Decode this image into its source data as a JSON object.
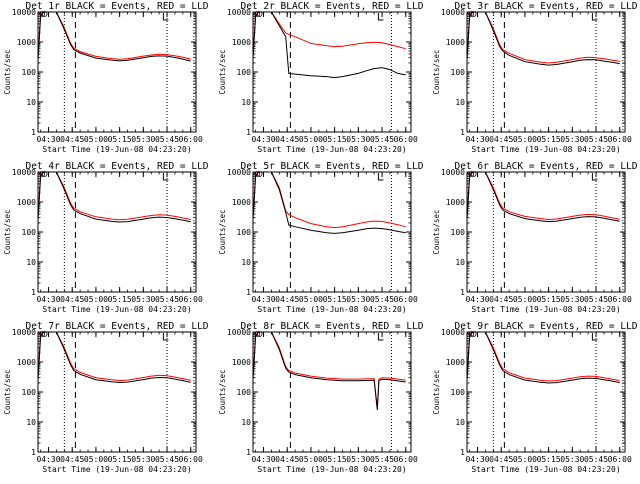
{
  "figure": {
    "xlabel": "Start Time (19-Jun-08 04:23:20)",
    "ylabel": "Counts/sec",
    "x_ticks": [
      "04:30",
      "04:45",
      "05:00",
      "05:15",
      "05:30",
      "05:45",
      "06:00"
    ],
    "y_ticks": [
      "1",
      "10",
      "100",
      "1000",
      "10000"
    ],
    "colors": {
      "events": "#000000",
      "lld": "#ff0000",
      "axes": "#000000",
      "background": "#ffffff"
    }
  },
  "chart_data": [
    {
      "type": "line",
      "title": "Det 1r BLACK = Events, RED = LLD",
      "xlim": [
        "04:23:20",
        "06:03:20"
      ],
      "ylim": [
        1,
        10000
      ],
      "yscale": "log",
      "x": [
        "04:23:20",
        "04:25",
        "04:27",
        "04:30",
        "04:35",
        "04:40",
        "04:44",
        "04:46",
        "04:50",
        "05:00",
        "05:10",
        "05:15",
        "05:20",
        "05:30",
        "05:35",
        "05:40",
        "05:45",
        "05:50",
        "05:55",
        "06:00"
      ],
      "series": [
        {
          "name": "LLD",
          "values": [
            300,
            8000,
            10000,
            10000,
            10000,
            3000,
            900,
            620,
            480,
            330,
            280,
            265,
            275,
            340,
            370,
            390,
            380,
            350,
            310,
            270
          ]
        },
        {
          "name": "Events",
          "values": [
            250,
            7000,
            10000,
            10000,
            10000,
            2600,
            800,
            560,
            430,
            290,
            250,
            235,
            245,
            300,
            330,
            345,
            340,
            305,
            270,
            230
          ]
        }
      ],
      "markers": [
        {
          "x": "04:26",
          "y": 10000
        },
        {
          "x": "04:27:30",
          "y": 10000
        }
      ],
      "dotted_vlines": [
        "04:40",
        "05:45",
        "06:02"
      ],
      "dashed_vlines": [
        "04:47"
      ]
    },
    {
      "type": "line",
      "title": "Det 2r BLACK = Events, RED = LLD",
      "xlim": [
        "04:23:20",
        "06:03:20"
      ],
      "ylim": [
        1,
        10000
      ],
      "yscale": "log",
      "x": [
        "04:23:20",
        "04:25",
        "04:27",
        "04:30",
        "04:35",
        "04:40",
        "04:44",
        "04:46",
        "04:50",
        "05:00",
        "05:10",
        "05:15",
        "05:20",
        "05:30",
        "05:35",
        "05:40",
        "05:45",
        "05:50",
        "05:55",
        "06:00"
      ],
      "series": [
        {
          "name": "LLD",
          "values": [
            300,
            8000,
            10000,
            10000,
            10000,
            4000,
            2000,
            1800,
            1500,
            900,
            750,
            700,
            720,
            880,
            950,
            980,
            940,
            820,
            700,
            600
          ]
        },
        {
          "name": "Events",
          "values": [
            300,
            7000,
            10000,
            10000,
            10000,
            3500,
            1500,
            90,
            85,
            75,
            70,
            65,
            70,
            90,
            110,
            130,
            140,
            120,
            90,
            80
          ]
        }
      ],
      "markers": [
        {
          "x": "04:26",
          "y": 10000
        },
        {
          "x": "04:27:30",
          "y": 10000
        }
      ],
      "dotted_vlines": [
        "05:51"
      ],
      "dashed_vlines": [
        "04:47"
      ]
    },
    {
      "type": "line",
      "title": "Det 3r BLACK = Events, RED = LLD",
      "xlim": [
        "04:23:20",
        "06:03:20"
      ],
      "ylim": [
        1,
        10000
      ],
      "yscale": "log",
      "x": [
        "04:23:20",
        "04:25",
        "04:27",
        "04:30",
        "04:35",
        "04:40",
        "04:44",
        "04:46",
        "04:50",
        "05:00",
        "05:10",
        "05:15",
        "05:20",
        "05:30",
        "05:35",
        "05:40",
        "05:45",
        "05:50",
        "05:55",
        "06:00"
      ],
      "series": [
        {
          "name": "LLD",
          "values": [
            300,
            8000,
            10000,
            10000,
            10000,
            2800,
            800,
            560,
            420,
            260,
            210,
            200,
            210,
            260,
            290,
            310,
            300,
            275,
            250,
            225
          ]
        },
        {
          "name": "Events",
          "values": [
            250,
            7000,
            10000,
            10000,
            10000,
            2400,
            700,
            500,
            360,
            220,
            180,
            170,
            178,
            220,
            245,
            260,
            255,
            230,
            210,
            190
          ]
        }
      ],
      "markers": [
        {
          "x": "04:26",
          "y": 10000
        },
        {
          "x": "04:27:30",
          "y": 10000
        }
      ],
      "dotted_vlines": [
        "04:40",
        "05:45",
        "06:02"
      ],
      "dashed_vlines": [
        "04:47"
      ]
    },
    {
      "type": "line",
      "title": "Det 4r BLACK = Events, RED = LLD",
      "xlim": [
        "04:23:20",
        "06:03:20"
      ],
      "ylim": [
        1,
        10000
      ],
      "yscale": "log",
      "x": [
        "04:23:20",
        "04:25",
        "04:27",
        "04:30",
        "04:35",
        "04:40",
        "04:44",
        "04:46",
        "04:50",
        "05:00",
        "05:10",
        "05:15",
        "05:20",
        "05:30",
        "05:35",
        "05:40",
        "05:45",
        "05:50",
        "05:55",
        "06:00"
      ],
      "series": [
        {
          "name": "LLD",
          "values": [
            300,
            8000,
            10000,
            10000,
            10000,
            3000,
            900,
            620,
            470,
            320,
            270,
            255,
            265,
            320,
            355,
            375,
            365,
            330,
            295,
            260
          ]
        },
        {
          "name": "Events",
          "values": [
            250,
            7000,
            10000,
            10000,
            10000,
            2600,
            780,
            540,
            410,
            270,
            225,
            215,
            222,
            270,
            300,
            315,
            305,
            278,
            250,
            220
          ]
        }
      ],
      "markers": [
        {
          "x": "04:26",
          "y": 10000
        },
        {
          "x": "04:27:30",
          "y": 10000
        }
      ],
      "dotted_vlines": [
        "04:40",
        "05:45",
        "06:02"
      ],
      "dashed_vlines": [
        "04:47"
      ]
    },
    {
      "type": "line",
      "title": "Det 5r BLACK = Events, RED = LLD",
      "xlim": [
        "04:23:20",
        "06:03:20"
      ],
      "ylim": [
        1,
        10000
      ],
      "yscale": "log",
      "x": [
        "04:23:20",
        "04:25",
        "04:27",
        "04:30",
        "04:35",
        "04:40",
        "04:44",
        "04:46",
        "04:50",
        "05:00",
        "05:10",
        "05:15",
        "05:20",
        "05:30",
        "05:35",
        "05:40",
        "05:45",
        "05:50",
        "05:55",
        "06:00"
      ],
      "series": [
        {
          "name": "LLD",
          "values": [
            300,
            8000,
            10000,
            10000,
            10000,
            3000,
            500,
            380,
            300,
            190,
            150,
            140,
            148,
            190,
            215,
            230,
            225,
            200,
            175,
            150
          ]
        },
        {
          "name": "Events",
          "values": [
            250,
            7000,
            10000,
            10000,
            10000,
            2600,
            450,
            170,
            150,
            115,
            95,
            90,
            94,
            115,
            128,
            135,
            130,
            118,
            105,
            95
          ]
        }
      ],
      "markers": [
        {
          "x": "04:26",
          "y": 10000
        },
        {
          "x": "04:27:30",
          "y": 10000
        }
      ],
      "dotted_vlines": [
        "05:51"
      ],
      "dashed_vlines": [
        "04:47"
      ]
    },
    {
      "type": "line",
      "title": "Det 6r BLACK = Events, RED = LLD",
      "xlim": [
        "04:23:20",
        "06:03:20"
      ],
      "ylim": [
        1,
        10000
      ],
      "yscale": "log",
      "x": [
        "04:23:20",
        "04:25",
        "04:27",
        "04:30",
        "04:35",
        "04:40",
        "04:44",
        "04:46",
        "04:50",
        "05:00",
        "05:10",
        "05:15",
        "05:20",
        "05:30",
        "05:35",
        "05:40",
        "05:45",
        "05:50",
        "05:55",
        "06:00"
      ],
      "series": [
        {
          "name": "LLD",
          "values": [
            300,
            8000,
            10000,
            10000,
            10000,
            3000,
            900,
            620,
            470,
            330,
            280,
            262,
            272,
            330,
            365,
            385,
            375,
            340,
            300,
            265
          ]
        },
        {
          "name": "Events",
          "values": [
            250,
            7000,
            10000,
            10000,
            10000,
            2600,
            780,
            540,
            410,
            280,
            235,
            222,
            230,
            280,
            310,
            325,
            318,
            288,
            258,
            228
          ]
        }
      ],
      "markers": [
        {
          "x": "04:26",
          "y": 10000
        },
        {
          "x": "04:27:30",
          "y": 10000
        }
      ],
      "dotted_vlines": [
        "04:40",
        "05:45",
        "06:02"
      ],
      "dashed_vlines": [
        "04:47"
      ]
    },
    {
      "type": "line",
      "title": "Det 7r BLACK = Events, RED = LLD",
      "xlim": [
        "04:23:20",
        "06:03:20"
      ],
      "ylim": [
        1,
        10000
      ],
      "yscale": "log",
      "x": [
        "04:23:20",
        "04:25",
        "04:27",
        "04:30",
        "04:35",
        "04:40",
        "04:44",
        "04:46",
        "04:50",
        "05:00",
        "05:10",
        "05:15",
        "05:20",
        "05:30",
        "05:35",
        "05:40",
        "05:45",
        "05:50",
        "05:55",
        "06:00"
      ],
      "series": [
        {
          "name": "LLD",
          "values": [
            300,
            8000,
            10000,
            10000,
            10000,
            3000,
            900,
            600,
            450,
            300,
            255,
            242,
            250,
            305,
            340,
            360,
            350,
            315,
            280,
            245
          ]
        },
        {
          "name": "Events",
          "values": [
            250,
            7000,
            10000,
            10000,
            10000,
            2600,
            780,
            520,
            390,
            258,
            218,
            208,
            214,
            260,
            290,
            305,
            298,
            270,
            240,
            210
          ]
        }
      ],
      "markers": [
        {
          "x": "04:26",
          "y": 10000
        },
        {
          "x": "04:27:30",
          "y": 10000
        }
      ],
      "dotted_vlines": [
        "04:40",
        "05:45",
        "06:02"
      ],
      "dashed_vlines": [
        "04:47"
      ]
    },
    {
      "type": "line",
      "title": "Det 8r BLACK = Events, RED = LLD",
      "xlim": [
        "04:23:20",
        "06:03:20"
      ],
      "ylim": [
        1,
        10000
      ],
      "yscale": "log",
      "x": [
        "04:23:20",
        "04:25",
        "04:27",
        "04:30",
        "04:35",
        "04:40",
        "04:44",
        "04:46",
        "04:50",
        "05:00",
        "05:10",
        "05:20",
        "05:30",
        "05:40",
        "05:41",
        "05:42",
        "05:43",
        "05:45",
        "05:50",
        "05:55",
        "06:00"
      ],
      "series": [
        {
          "name": "LLD",
          "values": [
            300,
            8000,
            10000,
            10000,
            10000,
            3000,
            700,
            520,
            430,
            340,
            290,
            270,
            270,
            280,
            90,
            30,
            270,
            300,
            290,
            270,
            250
          ]
        },
        {
          "name": "Events",
          "values": [
            250,
            7000,
            10000,
            10000,
            10000,
            2600,
            620,
            460,
            380,
            300,
            255,
            238,
            238,
            245,
            80,
            25,
            240,
            265,
            255,
            235,
            215
          ]
        }
      ],
      "markers": [
        {
          "x": "04:26",
          "y": 10000
        },
        {
          "x": "04:27:30",
          "y": 10000
        }
      ],
      "dotted_vlines": [
        "05:51"
      ],
      "dashed_vlines": [
        "04:47"
      ]
    },
    {
      "type": "line",
      "title": "Det 9r BLACK = Events, RED = LLD",
      "xlim": [
        "04:23:20",
        "06:03:20"
      ],
      "ylim": [
        1,
        10000
      ],
      "yscale": "log",
      "x": [
        "04:23:20",
        "04:25",
        "04:27",
        "04:30",
        "04:35",
        "04:40",
        "04:44",
        "04:46",
        "04:50",
        "05:00",
        "05:10",
        "05:15",
        "05:20",
        "05:30",
        "05:35",
        "05:40",
        "05:45",
        "05:50",
        "05:55",
        "06:00"
      ],
      "series": [
        {
          "name": "LLD",
          "values": [
            300,
            8000,
            10000,
            10000,
            10000,
            3000,
            900,
            600,
            440,
            290,
            245,
            232,
            240,
            290,
            320,
            338,
            330,
            300,
            270,
            240
          ]
        },
        {
          "name": "Events",
          "values": [
            250,
            7000,
            10000,
            10000,
            10000,
            2600,
            780,
            520,
            380,
            250,
            210,
            200,
            206,
            250,
            275,
            290,
            283,
            258,
            232,
            205
          ]
        }
      ],
      "markers": [
        {
          "x": "04:26",
          "y": 10000
        },
        {
          "x": "04:27:30",
          "y": 10000
        }
      ],
      "dotted_vlines": [
        "04:40",
        "05:45",
        "06:02"
      ],
      "dashed_vlines": [
        "04:47"
      ]
    }
  ]
}
